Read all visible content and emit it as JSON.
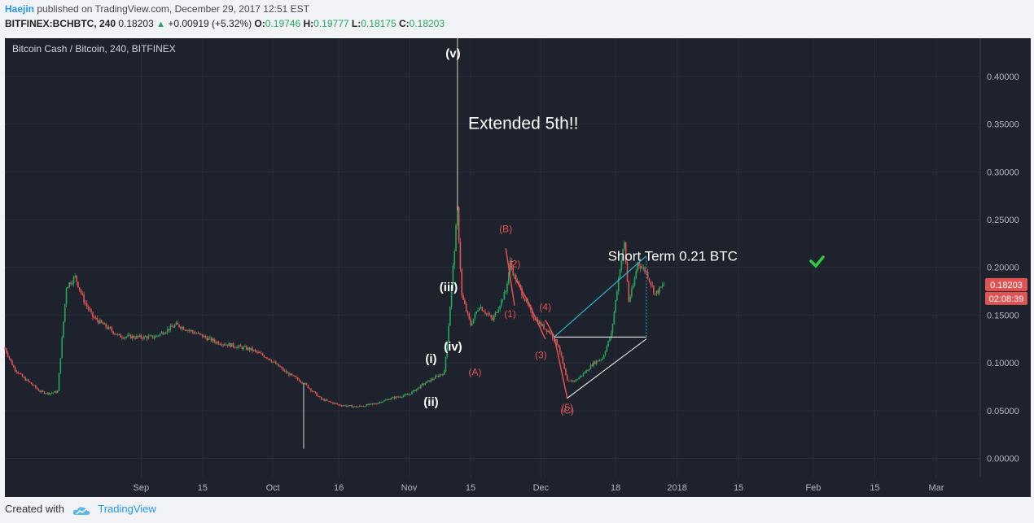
{
  "header": {
    "author": "Haejin",
    "published": "published on TradingView.com, December 29, 2017 12:51 EST",
    "symbol": "BITFINEX:BCHBTC, 240",
    "last": "0.18203",
    "change": "+0.00919 (+5.32%)",
    "open_label": "O:",
    "open": "0.19746",
    "high_label": "H:",
    "high": "0.19777",
    "low_label": "L:",
    "low": "0.18175",
    "close_label": "C:",
    "close": "0.18203"
  },
  "footer": {
    "created_with": "Created with",
    "brand": "TradingView"
  },
  "chart_data": {
    "type": "candlestick",
    "title": "Bitcoin Cash / Bitcoin, 240, BITFINEX",
    "background": "#1e222d",
    "up_color": "#26a65b",
    "down_color": "#e05353",
    "ylim": [
      -0.02,
      0.44
    ],
    "ytick_labels": [
      "0.00000",
      "0.05000",
      "0.10000",
      "0.15000",
      "0.20000",
      "0.25000",
      "0.30000",
      "0.35000",
      "0.40000"
    ],
    "yticks": [
      0,
      0.05,
      0.1,
      0.15,
      0.2,
      0.25,
      0.3,
      0.35,
      0.4
    ],
    "xlim": [
      "2017-08-01",
      "2018-03-11"
    ],
    "xticks": [
      {
        "label": "Sep",
        "date": "2017-09-01"
      },
      {
        "label": "15",
        "date": "2017-09-15"
      },
      {
        "label": "Oct",
        "date": "2017-10-01"
      },
      {
        "label": "16",
        "date": "2017-10-16"
      },
      {
        "label": "Nov",
        "date": "2017-11-01"
      },
      {
        "label": "15",
        "date": "2017-11-15"
      },
      {
        "label": "Dec",
        "date": "2017-12-01"
      },
      {
        "label": "18",
        "date": "2017-12-18"
      },
      {
        "label": "2018",
        "date": "2018-01-01"
      },
      {
        "label": "15",
        "date": "2018-01-15"
      },
      {
        "label": "Feb",
        "date": "2018-02-01"
      },
      {
        "label": "15",
        "date": "2018-02-15"
      },
      {
        "label": "Mar",
        "date": "2018-03-01"
      }
    ],
    "price_series": {
      "x": [
        "2017-08-01",
        "2017-08-03",
        "2017-08-05",
        "2017-08-07",
        "2017-08-09",
        "2017-08-11",
        "2017-08-13",
        "2017-08-15",
        "2017-08-17",
        "2017-08-19",
        "2017-08-21",
        "2017-08-24",
        "2017-08-27",
        "2017-08-31",
        "2017-09-04",
        "2017-09-09",
        "2017-09-13",
        "2017-09-18",
        "2017-09-22",
        "2017-09-26",
        "2017-09-30",
        "2017-10-04",
        "2017-10-08",
        "2017-10-12",
        "2017-10-16",
        "2017-10-20",
        "2017-10-24",
        "2017-10-28",
        "2017-11-01",
        "2017-11-04",
        "2017-11-07",
        "2017-11-09",
        "2017-11-10",
        "2017-11-11",
        "2017-11-12",
        "2017-11-13",
        "2017-11-15",
        "2017-11-17",
        "2017-11-20",
        "2017-11-23",
        "2017-11-24",
        "2017-11-25",
        "2017-11-27",
        "2017-11-29",
        "2017-12-01",
        "2017-12-03",
        "2017-12-05",
        "2017-12-07",
        "2017-12-09",
        "2017-12-11",
        "2017-12-13",
        "2017-12-15",
        "2017-12-17",
        "2017-12-19",
        "2017-12-20",
        "2017-12-21",
        "2017-12-22",
        "2017-12-23",
        "2017-12-25",
        "2017-12-27",
        "2017-12-29"
      ],
      "y": [
        0.115,
        0.095,
        0.085,
        0.078,
        0.07,
        0.068,
        0.07,
        0.18,
        0.19,
        0.165,
        0.148,
        0.138,
        0.128,
        0.127,
        0.127,
        0.14,
        0.132,
        0.122,
        0.118,
        0.114,
        0.105,
        0.09,
        0.079,
        0.062,
        0.056,
        0.054,
        0.057,
        0.063,
        0.067,
        0.077,
        0.085,
        0.09,
        0.14,
        0.2,
        0.26,
        0.17,
        0.14,
        0.16,
        0.145,
        0.175,
        0.205,
        0.19,
        0.17,
        0.15,
        0.14,
        0.132,
        0.118,
        0.08,
        0.082,
        0.09,
        0.1,
        0.105,
        0.13,
        0.2,
        0.225,
        0.165,
        0.18,
        0.205,
        0.195,
        0.172,
        0.182
      ]
    },
    "spikes": [
      {
        "date": "2017-10-08",
        "low": 0.01
      },
      {
        "date": "2017-11-12",
        "high": 0.44
      }
    ],
    "current_price_label": "0.18203",
    "countdown_label": "02:08:39",
    "annotations": [
      {
        "text": "(v)",
        "x": "2017-11-11",
        "y": 0.42,
        "color": "#ffffff"
      },
      {
        "text": "Extended 5th!!",
        "x": "2017-11-27",
        "y": 0.345,
        "color": "#ffffff"
      },
      {
        "text": "(iii)",
        "x": "2017-11-10",
        "y": 0.175,
        "color": "#ffffff"
      },
      {
        "text": "(iv)",
        "x": "2017-11-11",
        "y": 0.113,
        "color": "#ffffff"
      },
      {
        "text": "(i)",
        "x": "2017-11-06",
        "y": 0.1,
        "color": "#ffffff"
      },
      {
        "text": "(ii)",
        "x": "2017-11-06",
        "y": 0.055,
        "color": "#ffffff"
      },
      {
        "text": "(A)",
        "x": "2017-11-16",
        "y": 0.087,
        "color": "#e05353"
      },
      {
        "text": "(B)",
        "x": "2017-11-23",
        "y": 0.237,
        "color": "#e05353"
      },
      {
        "text": "(2)",
        "x": "2017-11-25",
        "y": 0.2,
        "color": "#e05353"
      },
      {
        "text": "(1)",
        "x": "2017-11-24",
        "y": 0.148,
        "color": "#e05353"
      },
      {
        "text": "(4)",
        "x": "2017-12-02",
        "y": 0.155,
        "color": "#e05353"
      },
      {
        "text": "(3)",
        "x": "2017-12-01",
        "y": 0.105,
        "color": "#e05353"
      },
      {
        "text": "(5)",
        "x": "2017-12-07",
        "y": 0.05,
        "color": "#e05353"
      },
      {
        "text": "(C)",
        "x": "2017-12-07",
        "y": 0.047,
        "color": "#e05353"
      },
      {
        "text": "Short Term 0.21 BTC",
        "x": "2017-12-31",
        "y": 0.207,
        "color": "#ffffff"
      }
    ],
    "wave_lines": [
      {
        "from": [
          "2017-11-23",
          0.22
        ],
        "to": [
          "2017-11-25",
          0.16
        ],
        "color": "#e05353"
      },
      {
        "from": [
          "2017-11-25",
          0.19
        ],
        "to": [
          "2017-11-28",
          0.165
        ],
        "color": "#e05353"
      },
      {
        "from": [
          "2017-11-28",
          0.165
        ],
        "to": [
          "2017-12-02",
          0.125
        ],
        "color": "#e05353"
      },
      {
        "from": [
          "2017-12-02",
          0.145
        ],
        "to": [
          "2017-12-04",
          0.128
        ],
        "color": "#e05353"
      },
      {
        "from": [
          "2017-12-04",
          0.128
        ],
        "to": [
          "2017-12-07",
          0.063
        ],
        "color": "#e05353"
      }
    ],
    "triangle": {
      "color": "#ffffff",
      "lines": [
        {
          "from": [
            "2017-12-07",
            0.063
          ],
          "to": [
            "2017-12-25",
            0.125
          ]
        },
        {
          "from": [
            "2017-12-04",
            0.127
          ],
          "to": [
            "2017-12-25",
            0.127
          ]
        }
      ]
    },
    "target": {
      "color": "#29b6c9",
      "lines": [
        {
          "from": [
            "2017-12-04",
            0.127
          ],
          "to": [
            "2017-12-25",
            0.212
          ]
        }
      ],
      "dotted": {
        "from": [
          "2017-12-25",
          0.127
        ],
        "to": [
          "2017-12-25",
          0.212
        ]
      }
    }
  }
}
